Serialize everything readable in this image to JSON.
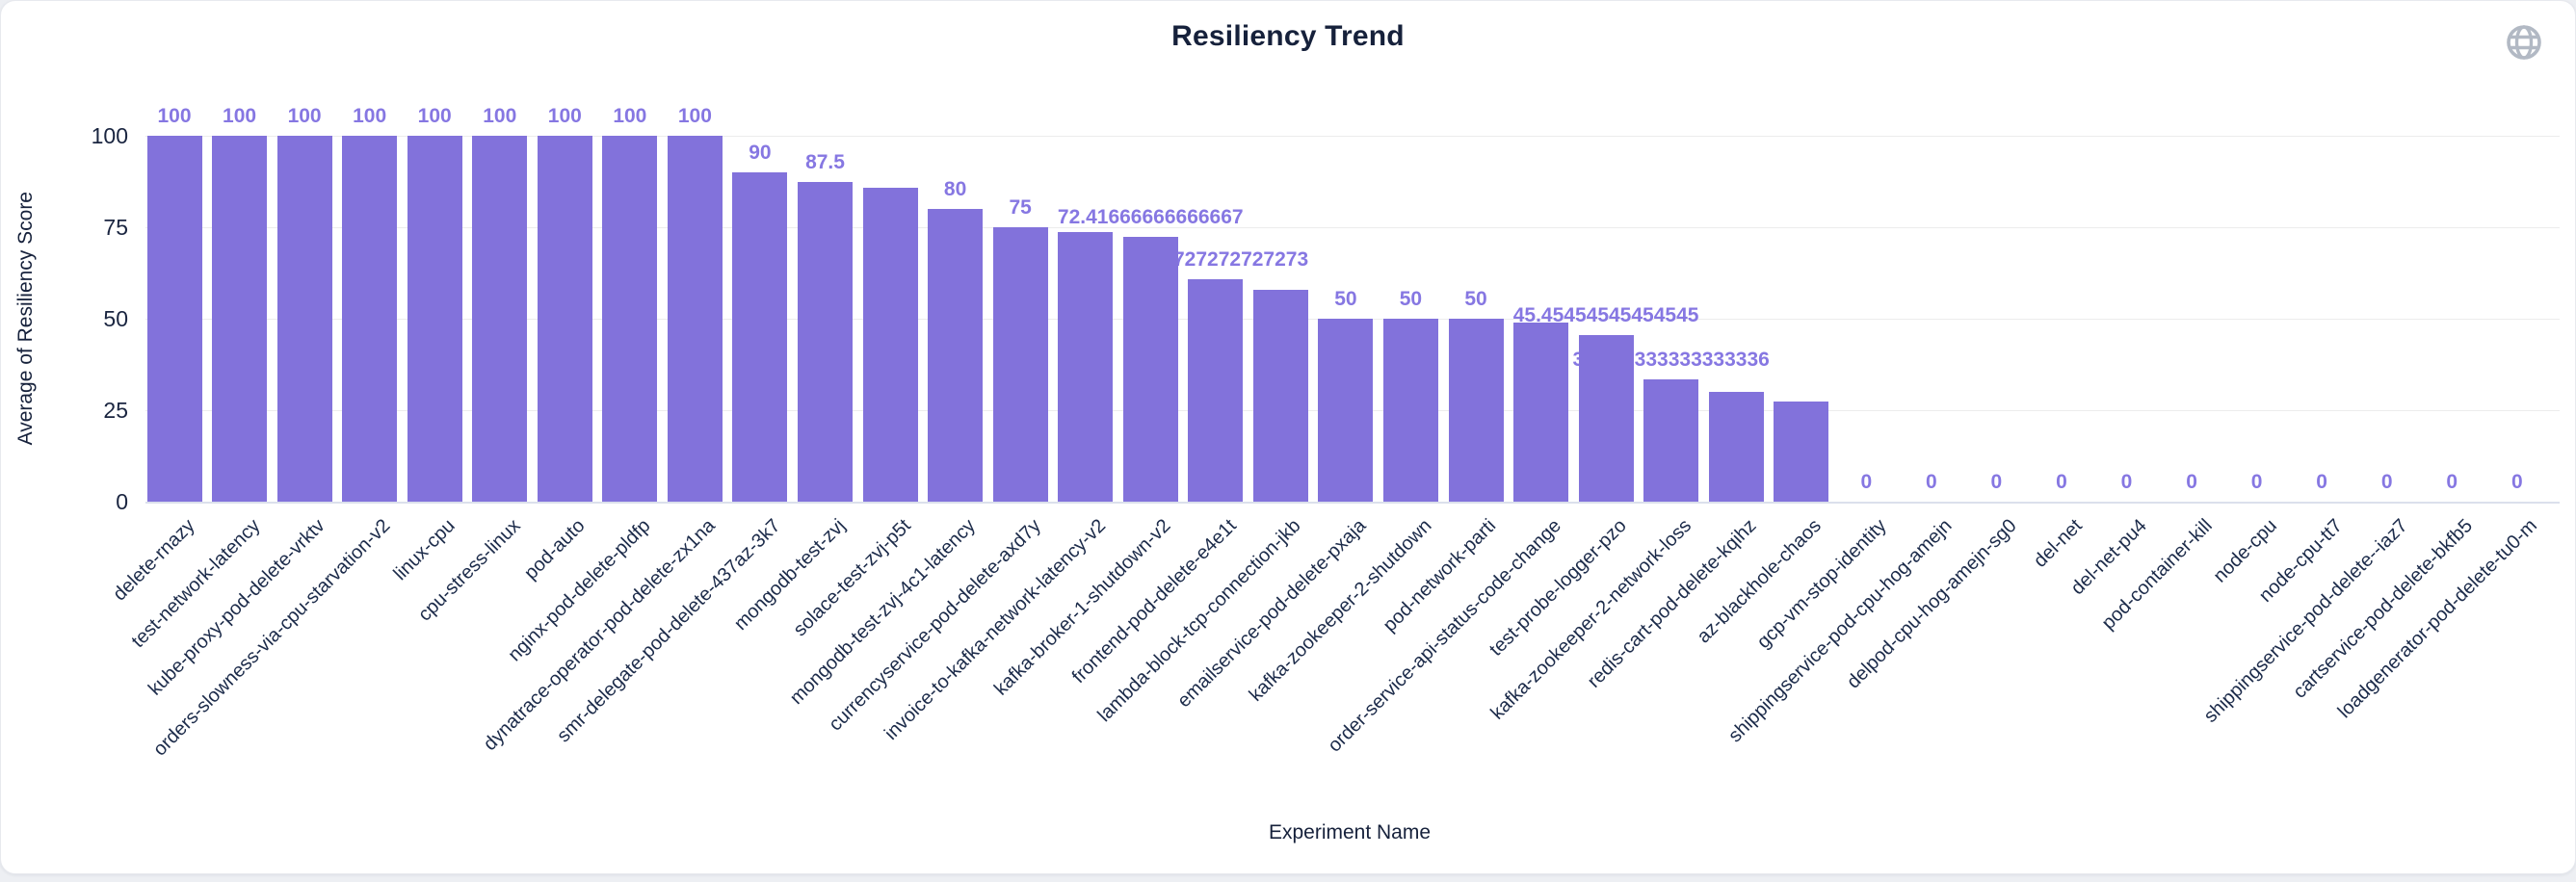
{
  "header": {
    "title": "Resiliency Trend",
    "globe_icon_color": "#b2b9c4"
  },
  "chart_data": {
    "type": "bar",
    "title": "Resiliency Trend",
    "xlabel": "Experiment Name",
    "ylabel": "Average of Resiliency Score",
    "ylim": [
      0,
      100
    ],
    "yticks": [
      0,
      25,
      50,
      75,
      100
    ],
    "grid": true,
    "legend": false,
    "bar_color": "#8272DB",
    "value_label_color": "#8677E2",
    "categories": [
      "delete-rnazy",
      "test-network-latency",
      "kube-proxy-pod-delete-vrktv",
      "orders-slowness-via-cpu-starvation-v2",
      "linux-cpu",
      "cpu-stress-linux",
      "pod-auto",
      "nginx-pod-delete-pldfp",
      "dynatrace-operator-pod-delete-zx1na",
      "smr-delegate-pod-delete-437az-3k7",
      "mongodb-test-zvj",
      "solace-test-zvj-p5t",
      "mongodb-test-zvj-4c1-latency",
      "currencyservice-pod-delete-axd7y",
      "invoice-to-kafka-network-latency-v2",
      "kafka-broker-1-shutdown-v2",
      "frontend-pod-delete-e4e1t",
      "lambda-block-tcp-connection-jkb",
      "emailservice-pod-delete-pxaja",
      "kafka-zookeeper-2-shutdown",
      "pod-network-parti",
      "order-service-api-status-code-change",
      "test-probe-logger-pzo",
      "kafka-zookeeper-2-network-loss",
      "redis-cart-pod-delete-kqihz",
      "az-blackhole-chaos",
      "gcp-vm-stop-identity",
      "shippingservice-pod-cpu-hog-amejn",
      "delpod-cpu-hog-amejn-sg0",
      "del-net",
      "del-net-pu4",
      "pod-container-kill",
      "node-cpu",
      "node-cpu-tt7",
      "shippingservice-pod-delete--iaz7",
      "cartservice-pod-delete-bkfb5",
      "loadgenerator-pod-delete-tu0-m"
    ],
    "values": [
      100,
      100,
      100,
      100,
      100,
      100,
      100,
      100,
      100,
      90,
      87.5,
      85.8,
      80,
      75,
      73.6,
      72.41666666666667,
      60.72727272727273,
      58,
      50,
      50,
      50,
      49,
      45.45454545454545,
      33.333333333333336,
      30,
      27.5,
      0,
      0,
      0,
      0,
      0,
      0,
      0,
      0,
      0,
      0,
      0
    ],
    "value_labels": [
      "100",
      "100",
      "100",
      "100",
      "100",
      "100",
      "100",
      "100",
      "100",
      "90",
      "87.5",
      "",
      "80",
      "75",
      "",
      "72.41666666666667",
      "60.72727272727273",
      "",
      "50",
      "50",
      "50",
      "",
      "45.45454545454545",
      "33.333333333333336",
      "",
      "",
      "0",
      "0",
      "0",
      "0",
      "0",
      "0",
      "0",
      "0",
      "0",
      "0",
      "0"
    ]
  }
}
